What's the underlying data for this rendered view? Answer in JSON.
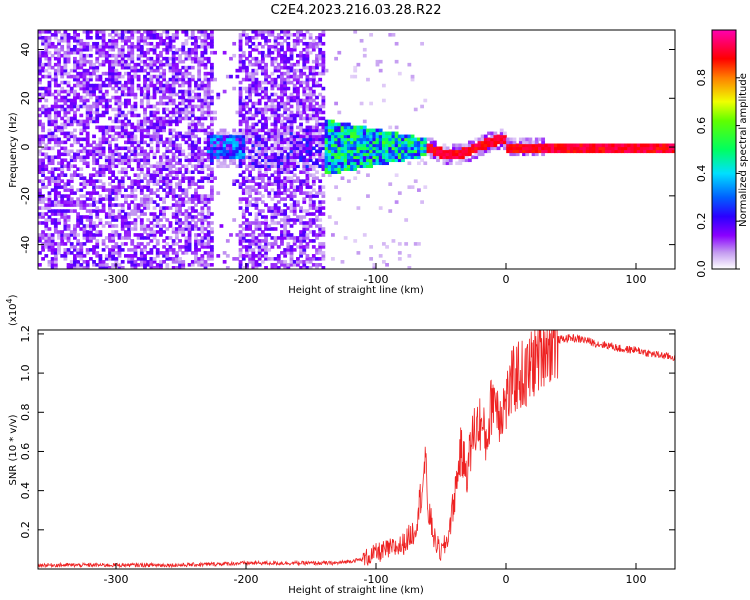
{
  "figure_title": "C2E4.2023.216.03.28.R22",
  "chart_data": [
    {
      "type": "heatmap",
      "title": "",
      "xlabel": "Height of straight line (km)",
      "ylabel": "Frequency (Hz)",
      "xlim": [
        -360,
        130
      ],
      "ylim": [
        -50,
        48
      ],
      "xticks": [
        -300,
        -200,
        -100,
        0,
        100
      ],
      "yticks": [
        -40,
        -20,
        0,
        20,
        40
      ],
      "grid": false,
      "colorbar": {
        "label": "Normalized spectral amplitude",
        "range": [
          0.0,
          1.0
        ],
        "ticks": [
          0.0,
          0.2,
          0.4,
          0.6,
          0.8
        ],
        "tick_labels": [
          "0.0",
          "0.2",
          "0.4",
          "0.6",
          "0.8"
        ],
        "colormap": "rainbow (white-purple-blue-cyan-green-yellow-red-magenta)"
      },
      "features": {
        "noise_region_x": [
          -360,
          -140
        ],
        "noise_amplitude": 0.15,
        "transition_region_x": [
          -145,
          -60
        ],
        "transition_amplitude": 0.5,
        "signal_line_start_x": -60,
        "signal_line_end_x": 130,
        "signal_line_freq": 0,
        "signal_line_amplitude": 0.95,
        "signal_line_halfwidth_hz": 2
      }
    },
    {
      "type": "line",
      "title": "",
      "xlabel": "Height of straight line (km)",
      "ylabel": "SNR (10 * v/v)",
      "y_multiplier": "(x10^4)",
      "xlim": [
        -360,
        130
      ],
      "ylim": [
        0.0,
        1.22
      ],
      "xticks": [
        -300,
        -200,
        -100,
        0,
        100
      ],
      "yticks": [
        0.2,
        0.4,
        0.6,
        0.8,
        1.0,
        1.2
      ],
      "ytick_labels": [
        "0.2",
        "0.4",
        "0.6",
        "0.8",
        "1.0",
        "1.2"
      ],
      "grid": false,
      "line_color": "#ee2222",
      "series": [
        {
          "x": [
            -360,
            -300,
            -250,
            -200,
            -150,
            -130,
            -110,
            -100,
            -90,
            -80,
            -70,
            -65,
            -62,
            -60,
            -58,
            -55,
            -50,
            -45,
            -40,
            -35,
            -30,
            -25,
            -20,
            -15,
            -10,
            -5,
            0,
            5,
            10,
            15,
            20,
            25,
            30,
            40,
            50,
            60,
            70,
            80,
            90,
            100,
            110,
            120,
            130
          ],
          "values": [
            0.02,
            0.02,
            0.02,
            0.03,
            0.03,
            0.03,
            0.05,
            0.08,
            0.1,
            0.12,
            0.2,
            0.4,
            0.55,
            0.3,
            0.25,
            0.15,
            0.08,
            0.15,
            0.35,
            0.6,
            0.5,
            0.7,
            0.75,
            0.65,
            0.9,
            0.8,
            0.85,
            0.95,
            1.0,
            0.97,
            1.05,
            1.1,
            1.15,
            1.17,
            1.18,
            1.17,
            1.15,
            1.14,
            1.12,
            1.12,
            1.1,
            1.09,
            1.08
          ]
        }
      ]
    }
  ]
}
